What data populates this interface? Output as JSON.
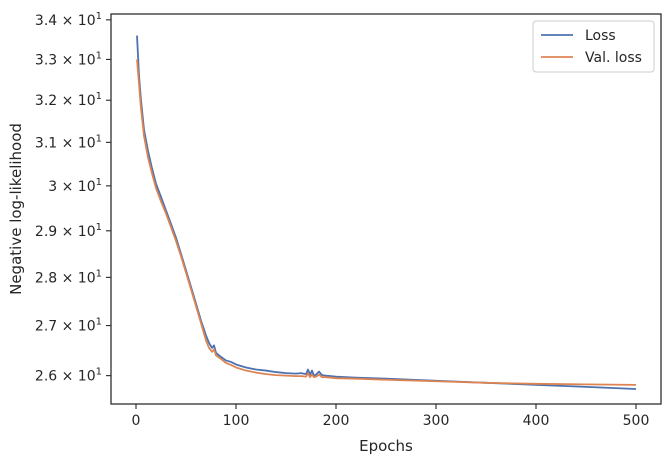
{
  "chart_data": {
    "type": "line",
    "xlabel": "Epochs",
    "ylabel": "Negative log-likelihood",
    "xlim": [
      -25,
      525
    ],
    "ylim": [
      25.45,
      34.15
    ],
    "y_scale": "log",
    "grid": false,
    "legend_position": "top-right",
    "x_ticks": [
      0,
      100,
      200,
      300,
      400,
      500
    ],
    "x_tick_labels": [
      "0",
      "100",
      "200",
      "300",
      "400",
      "500"
    ],
    "y_ticks": [
      26,
      27,
      28,
      29,
      30,
      31,
      32,
      33,
      34
    ],
    "y_tick_labels": [
      {
        "mantissa": "2.6",
        "base": "10",
        "exp": "1"
      },
      {
        "mantissa": "2.7",
        "base": "10",
        "exp": "1"
      },
      {
        "mantissa": "2.8",
        "base": "10",
        "exp": "1"
      },
      {
        "mantissa": "2.9",
        "base": "10",
        "exp": "1"
      },
      {
        "mantissa": "3",
        "base": "10",
        "exp": "1"
      },
      {
        "mantissa": "3.1",
        "base": "10",
        "exp": "1"
      },
      {
        "mantissa": "3.2",
        "base": "10",
        "exp": "1"
      },
      {
        "mantissa": "3.3",
        "base": "10",
        "exp": "1"
      },
      {
        "mantissa": "3.4",
        "base": "10",
        "exp": "1"
      }
    ],
    "series": [
      {
        "name": "Loss",
        "color": "#4c72b0",
        "x": [
          1,
          3,
          5,
          8,
          12,
          16,
          20,
          25,
          30,
          35,
          40,
          45,
          50,
          55,
          60,
          65,
          70,
          73,
          76,
          78,
          80,
          85,
          90,
          95,
          100,
          110,
          120,
          130,
          140,
          150,
          160,
          165,
          170,
          172,
          174,
          176,
          178,
          180,
          183,
          186,
          190,
          200,
          220,
          250,
          300,
          350,
          400,
          450,
          500
        ],
        "y": [
          33.6,
          32.6,
          32.0,
          31.3,
          30.8,
          30.4,
          30.05,
          29.75,
          29.45,
          29.15,
          28.85,
          28.5,
          28.15,
          27.8,
          27.45,
          27.1,
          26.8,
          26.65,
          26.55,
          26.6,
          26.45,
          26.37,
          26.3,
          26.27,
          26.22,
          26.16,
          26.12,
          26.1,
          26.07,
          26.05,
          26.04,
          26.05,
          26.03,
          26.12,
          26.02,
          26.1,
          26.0,
          26.02,
          26.08,
          26.01,
          26.0,
          25.98,
          25.96,
          25.94,
          25.9,
          25.86,
          25.82,
          25.78,
          25.74
        ]
      },
      {
        "name": "Val. loss",
        "color": "#dd8452",
        "x": [
          1,
          3,
          5,
          8,
          12,
          16,
          20,
          25,
          30,
          35,
          40,
          45,
          50,
          55,
          60,
          65,
          70,
          73,
          76,
          78,
          80,
          85,
          90,
          95,
          100,
          110,
          120,
          130,
          140,
          150,
          160,
          165,
          170,
          172,
          174,
          176,
          178,
          180,
          183,
          186,
          190,
          200,
          220,
          250,
          300,
          350,
          400,
          450,
          500
        ],
        "y": [
          33.0,
          32.4,
          31.8,
          31.15,
          30.65,
          30.28,
          29.95,
          29.65,
          29.38,
          29.08,
          28.78,
          28.45,
          28.1,
          27.75,
          27.4,
          27.05,
          26.7,
          26.55,
          26.47,
          26.52,
          26.4,
          26.33,
          26.25,
          26.21,
          26.16,
          26.1,
          26.06,
          26.03,
          26.01,
          26.0,
          25.99,
          25.99,
          25.98,
          26.05,
          25.97,
          26.02,
          25.97,
          25.98,
          26.02,
          25.97,
          25.97,
          25.95,
          25.94,
          25.92,
          25.89,
          25.86,
          25.84,
          25.83,
          25.82
        ]
      }
    ]
  }
}
